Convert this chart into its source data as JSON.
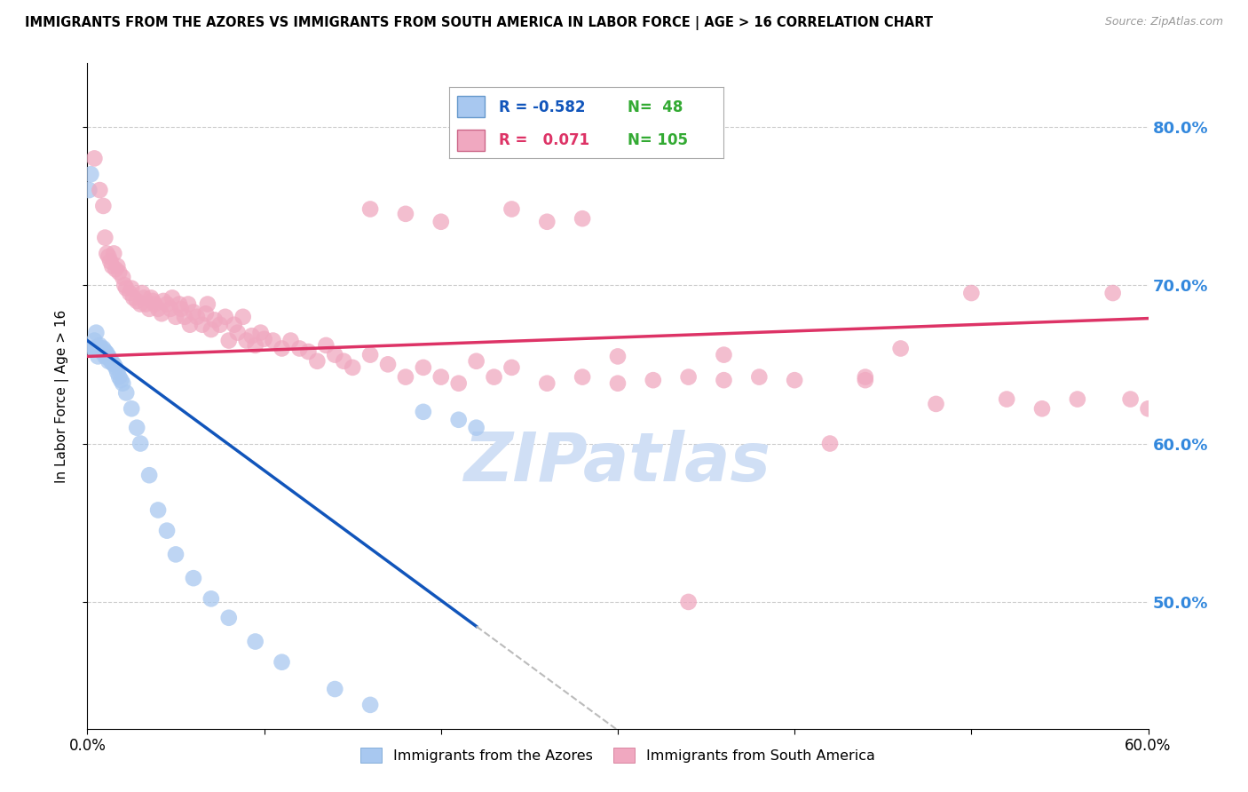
{
  "title": "IMMIGRANTS FROM THE AZORES VS IMMIGRANTS FROM SOUTH AMERICA IN LABOR FORCE | AGE > 16 CORRELATION CHART",
  "source": "Source: ZipAtlas.com",
  "ylabel": "In Labor Force | Age > 16",
  "xmin": 0.0,
  "xmax": 0.6,
  "ymin": 0.42,
  "ymax": 0.84,
  "right_yticks": [
    0.5,
    0.6,
    0.7,
    0.8
  ],
  "right_yticklabels": [
    "50.0%",
    "60.0%",
    "70.0%",
    "80.0%"
  ],
  "legend_azores_R": "-0.582",
  "legend_azores_N": "48",
  "legend_sa_R": "0.071",
  "legend_sa_N": "105",
  "azores_color": "#a8c8f0",
  "sa_color": "#f0a8c0",
  "azores_line_color": "#1155bb",
  "sa_line_color": "#dd3366",
  "grid_color": "#cccccc",
  "watermark_color": "#d0dff5",
  "azores_x": [
    0.001,
    0.002,
    0.003,
    0.004,
    0.004,
    0.005,
    0.005,
    0.006,
    0.006,
    0.007,
    0.007,
    0.008,
    0.008,
    0.009,
    0.009,
    0.01,
    0.01,
    0.01,
    0.011,
    0.011,
    0.012,
    0.012,
    0.013,
    0.014,
    0.015,
    0.016,
    0.017,
    0.018,
    0.019,
    0.02,
    0.022,
    0.025,
    0.028,
    0.03,
    0.035,
    0.04,
    0.045,
    0.05,
    0.06,
    0.07,
    0.08,
    0.095,
    0.11,
    0.14,
    0.16,
    0.19,
    0.21,
    0.22
  ],
  "azores_y": [
    0.76,
    0.77,
    0.66,
    0.66,
    0.665,
    0.66,
    0.67,
    0.655,
    0.66,
    0.66,
    0.662,
    0.658,
    0.66,
    0.658,
    0.66,
    0.658,
    0.655,
    0.658,
    0.655,
    0.657,
    0.652,
    0.655,
    0.653,
    0.651,
    0.65,
    0.648,
    0.645,
    0.642,
    0.64,
    0.638,
    0.632,
    0.622,
    0.61,
    0.6,
    0.58,
    0.558,
    0.545,
    0.53,
    0.515,
    0.502,
    0.49,
    0.475,
    0.462,
    0.445,
    0.435,
    0.62,
    0.615,
    0.61
  ],
  "sa_x": [
    0.004,
    0.007,
    0.009,
    0.01,
    0.011,
    0.012,
    0.013,
    0.014,
    0.015,
    0.016,
    0.017,
    0.018,
    0.02,
    0.021,
    0.022,
    0.024,
    0.025,
    0.026,
    0.028,
    0.03,
    0.031,
    0.032,
    0.033,
    0.035,
    0.036,
    0.037,
    0.038,
    0.04,
    0.042,
    0.043,
    0.045,
    0.047,
    0.048,
    0.05,
    0.052,
    0.053,
    0.055,
    0.057,
    0.058,
    0.06,
    0.062,
    0.065,
    0.067,
    0.068,
    0.07,
    0.072,
    0.075,
    0.078,
    0.08,
    0.083,
    0.085,
    0.088,
    0.09,
    0.093,
    0.095,
    0.098,
    0.1,
    0.105,
    0.11,
    0.115,
    0.12,
    0.125,
    0.13,
    0.135,
    0.14,
    0.145,
    0.15,
    0.16,
    0.17,
    0.18,
    0.19,
    0.2,
    0.21,
    0.22,
    0.23,
    0.24,
    0.26,
    0.28,
    0.3,
    0.32,
    0.34,
    0.36,
    0.38,
    0.4,
    0.42,
    0.44,
    0.46,
    0.48,
    0.5,
    0.52,
    0.54,
    0.56,
    0.58,
    0.59,
    0.6,
    0.34,
    0.36,
    0.44,
    0.28,
    0.3,
    0.16,
    0.18,
    0.2,
    0.24,
    0.26
  ],
  "sa_y": [
    0.78,
    0.76,
    0.75,
    0.73,
    0.72,
    0.718,
    0.715,
    0.712,
    0.72,
    0.71,
    0.712,
    0.708,
    0.705,
    0.7,
    0.698,
    0.695,
    0.698,
    0.692,
    0.69,
    0.688,
    0.695,
    0.692,
    0.688,
    0.685,
    0.692,
    0.69,
    0.688,
    0.685,
    0.682,
    0.69,
    0.688,
    0.685,
    0.692,
    0.68,
    0.688,
    0.685,
    0.68,
    0.688,
    0.675,
    0.683,
    0.68,
    0.675,
    0.682,
    0.688,
    0.672,
    0.678,
    0.675,
    0.68,
    0.665,
    0.675,
    0.67,
    0.68,
    0.665,
    0.668,
    0.662,
    0.67,
    0.666,
    0.665,
    0.66,
    0.665,
    0.66,
    0.658,
    0.652,
    0.662,
    0.656,
    0.652,
    0.648,
    0.656,
    0.65,
    0.642,
    0.648,
    0.642,
    0.638,
    0.652,
    0.642,
    0.648,
    0.638,
    0.642,
    0.638,
    0.64,
    0.642,
    0.64,
    0.642,
    0.64,
    0.6,
    0.642,
    0.66,
    0.625,
    0.695,
    0.628,
    0.622,
    0.628,
    0.695,
    0.628,
    0.622,
    0.5,
    0.656,
    0.64,
    0.742,
    0.655,
    0.748,
    0.745,
    0.74,
    0.748,
    0.74
  ]
}
